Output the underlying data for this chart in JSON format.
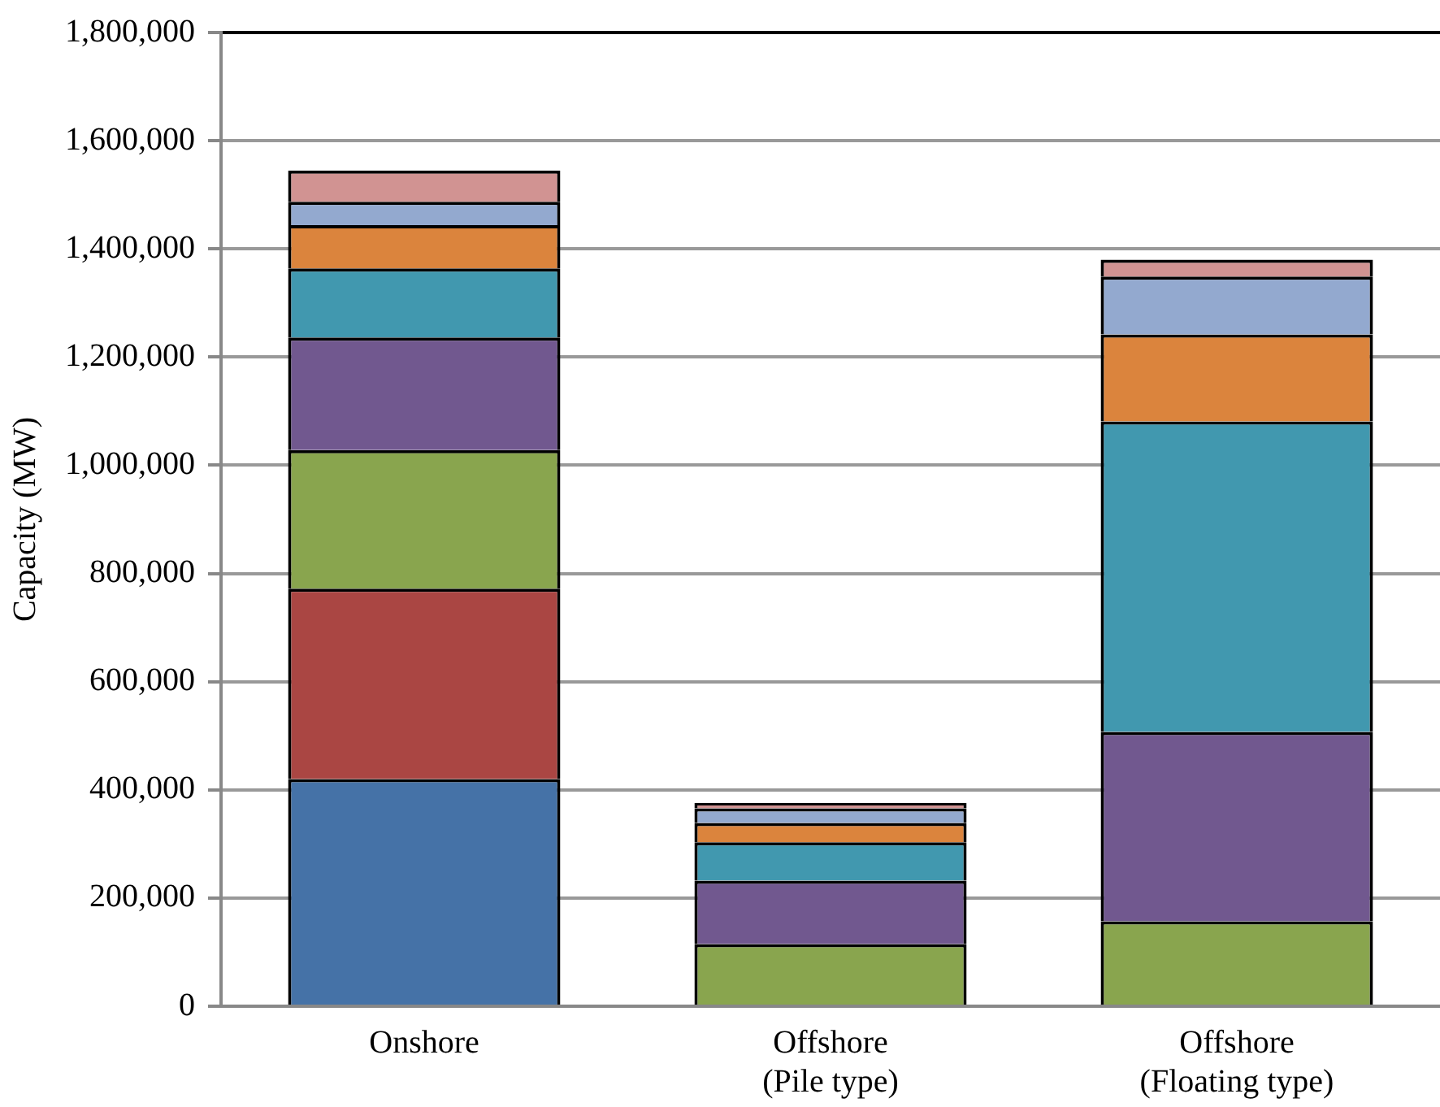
{
  "chart_data": {
    "type": "bar",
    "stacked": true,
    "ylabel": "Capacity (MW)",
    "categories": [
      "Onshore",
      "Offshore\n(Pile type)",
      "Offshore\n(Floating type)"
    ],
    "series": [
      {
        "color": "#4572a7",
        "values": [
          420000,
          0,
          0
        ]
      },
      {
        "color": "#aa4643",
        "values": [
          352000,
          0,
          0
        ]
      },
      {
        "color": "#89a54e",
        "values": [
          256000,
          115000,
          157000
        ]
      },
      {
        "color": "#71588f",
        "values": [
          208000,
          117000,
          350000
        ]
      },
      {
        "color": "#4198af",
        "values": [
          128000,
          71000,
          574000
        ]
      },
      {
        "color": "#db843d",
        "values": [
          80000,
          36000,
          161000
        ]
      },
      {
        "color": "#93a9cf",
        "values": [
          43000,
          27000,
          107000
        ]
      },
      {
        "color": "#d19392",
        "values": [
          58000,
          10000,
          31000
        ]
      }
    ],
    "ylim": [
      0,
      1800000
    ],
    "yticks": [
      0,
      {
        "value": 200000,
        "label": "200,000"
      },
      {
        "value": 400000,
        "label": "400,000"
      },
      {
        "value": 600000,
        "label": "600,000"
      },
      {
        "value": 800000,
        "label": "800,000"
      },
      {
        "value": 1000000,
        "label": "1,000,000"
      },
      {
        "value": 1200000,
        "label": "1,200,000"
      },
      {
        "value": 1400000,
        "label": "1,400,000"
      },
      {
        "value": 1600000,
        "label": "1,600,000"
      },
      {
        "value": 1800000,
        "label": "1,800,000"
      }
    ],
    "grid": "y",
    "legend": false
  }
}
